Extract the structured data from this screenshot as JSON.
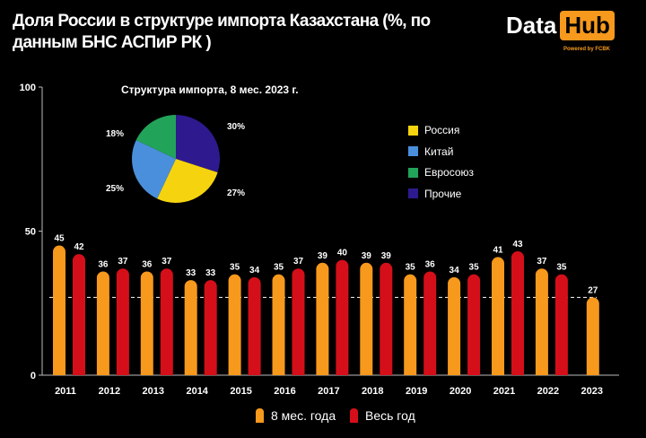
{
  "title": "Доля России в структуре импорта Казахстана (%, по данным БНС АСПиР РК )",
  "logo": {
    "data": "Data",
    "hub": "Hub",
    "powered": "Powered by FCBK"
  },
  "colors": {
    "orange": "#f7991c",
    "red": "#d50f19",
    "yellow": "#f5d40f",
    "blue": "#4a8fdc",
    "green": "#22a35a",
    "purple": "#2e1a8e"
  },
  "chart_data": [
    {
      "type": "bar",
      "title": "",
      "categories": [
        "2011",
        "2012",
        "2013",
        "2014",
        "2015",
        "2016",
        "2017",
        "2018",
        "2019",
        "2020",
        "2021",
        "2022",
        "2023"
      ],
      "series": [
        {
          "name": "8 мес. года",
          "values": [
            45,
            36,
            36,
            33,
            35,
            35,
            39,
            39,
            35,
            34,
            41,
            37,
            27
          ]
        },
        {
          "name": "Весь год",
          "values": [
            42,
            37,
            37,
            33,
            34,
            37,
            40,
            39,
            36,
            35,
            43,
            35,
            null
          ]
        }
      ],
      "ylim": [
        0,
        100
      ],
      "yticks": [
        "0",
        "50",
        "100"
      ],
      "reference_line": 27,
      "legend": "bottom"
    },
    {
      "type": "pie",
      "title": "Структура импорта, 8 мес. 2023 г.",
      "labels": [
        "Россия",
        "Китай",
        "Евросоюз",
        "Прочие"
      ],
      "values": [
        27,
        25,
        18,
        30
      ],
      "value_labels": [
        "27%",
        "25%",
        "18%",
        "30%"
      ],
      "legend": "right"
    }
  ]
}
